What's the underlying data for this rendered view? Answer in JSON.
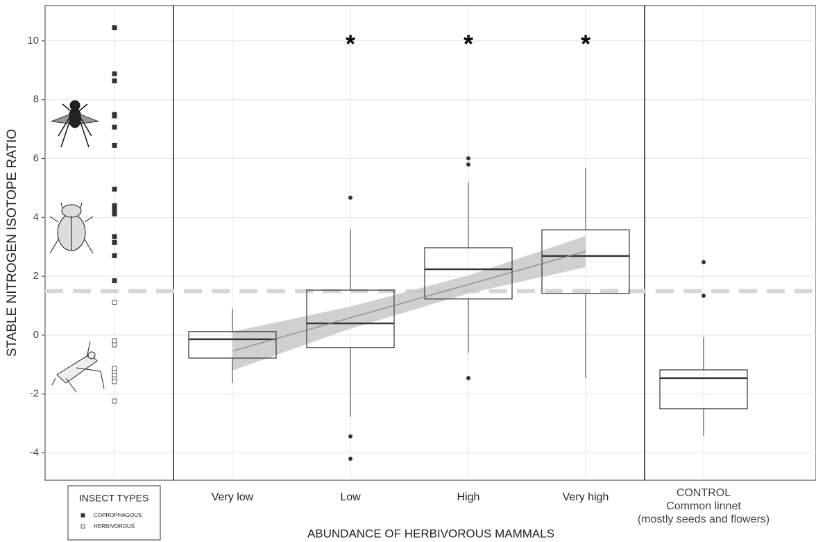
{
  "chart_data": {
    "type": "box",
    "ylabel": "STABLE NITROGEN ISOTOPE RATIO",
    "xlabel": "ABUNDANCE OF HERBIVOROUS MAMMALS",
    "ylim": [
      -4.93,
      11.2
    ],
    "yticks": [
      -4,
      -2,
      0,
      2,
      4,
      6,
      8,
      10
    ],
    "grid": true,
    "reference_line": 1.5,
    "categories": [
      "Very low",
      "Low",
      "High",
      "Very high"
    ],
    "boxes": [
      {
        "whisker_low": -1.63,
        "q1": -0.78,
        "median": -0.14,
        "q3": 0.12,
        "whisker_high": 0.9,
        "outliers": []
      },
      {
        "whisker_low": -2.78,
        "q1": -0.42,
        "median": 0.4,
        "q3": 1.53,
        "whisker_high": 3.6,
        "outliers": [
          4.67,
          -3.44,
          -4.2
        ]
      },
      {
        "whisker_low": -0.61,
        "q1": 1.23,
        "median": 2.24,
        "q3": 2.97,
        "whisker_high": 5.19,
        "outliers": [
          6.01,
          5.8,
          -1.46
        ]
      },
      {
        "whisker_low": -1.46,
        "q1": 1.42,
        "median": 2.69,
        "q3": 3.58,
        "whisker_high": 5.68,
        "outliers": []
      }
    ],
    "trend": {
      "values": [
        -0.54,
        0.59,
        1.72,
        2.85
      ],
      "lower": [
        -1.2,
        0.22,
        1.42,
        2.31
      ],
      "upper": [
        0.12,
        0.97,
        2.03,
        3.37
      ],
      "color": "#888888",
      "band_color": "#c8c8c8"
    },
    "significance": [
      {
        "category": "Low",
        "text": "*"
      },
      {
        "category": "High",
        "text": "*"
      },
      {
        "category": "Very high",
        "text": "*"
      }
    ],
    "control": {
      "label": [
        "CONTROL",
        "Common linnet",
        "(mostly seeds and flowers)"
      ],
      "box": {
        "whisker_low": -3.42,
        "q1": -2.5,
        "median": -1.46,
        "q3": -1.18,
        "whisker_high": -0.07,
        "outliers": [
          2.48,
          1.34
        ]
      }
    },
    "insects": {
      "legend_title": "INSECT TYPES",
      "series": [
        {
          "name": "COPROPHAGOUS",
          "color": "#333333",
          "filled": true,
          "values": [
            10.45,
            8.88,
            8.64,
            7.5,
            7.45,
            7.07,
            6.45,
            4.96,
            4.4,
            4.3,
            4.2,
            4.12,
            3.35,
            3.15,
            2.7,
            1.85
          ]
        },
        {
          "name": "HERBIVOROUS",
          "color": "#555555",
          "filled": false,
          "values": [
            1.12,
            -0.19,
            -0.33,
            -1.13,
            -1.27,
            -1.37,
            -1.49,
            -1.58,
            -2.24
          ]
        }
      ]
    }
  }
}
